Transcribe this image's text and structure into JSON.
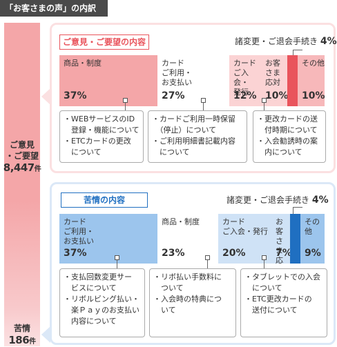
{
  "header": {
    "title": "「お客さまの声」の内訳"
  },
  "sidebar": {
    "opinion_label": "ご意見\n・ご要望",
    "opinion_count": "8,447",
    "complaint_label": "苦情",
    "complaint_count": "186",
    "count_unit": "件"
  },
  "opinion": {
    "title": "ご意見・ご要望の内容",
    "note_label": "諸変更・ご退会手続き",
    "note_pct": "4%",
    "segments": [
      {
        "label": "商品・制度",
        "pct": "37%",
        "value": 37,
        "color": "#f4a6a8"
      },
      {
        "label": "カード\nご利用・\nお支払い",
        "pct": "27%",
        "value": 27,
        "color": "#ffffff"
      },
      {
        "label": "カード\nご入会・\n発行",
        "pct": "12%",
        "value": 12,
        "color": "#fbd3d4"
      },
      {
        "label": "お客\nさま\n応対",
        "pct": "10%",
        "value": 10,
        "color": "#fbd3d4"
      },
      {
        "label": "",
        "pct": "",
        "value": 4,
        "color": "#e9545c"
      },
      {
        "label": "その他",
        "pct": "10%",
        "value": 10,
        "color": "#f7b8ba"
      }
    ],
    "bubbles": [
      [
        "・WEBサービスのID\n　登録・機能について",
        "・ETCカードの更改\n　について"
      ],
      [
        "・カードご利用一時保留\n　（停止）について",
        "・ご利用明細書記載内容\n　について"
      ],
      [
        "・更改カードの送\n　付時期について",
        "・入会勧誘時の案\n　内について"
      ]
    ]
  },
  "complaint": {
    "title": "苦情の内容",
    "note_label": "諸変更・ご退会手続き",
    "note_pct": "4%",
    "segments": [
      {
        "label": "カード\nご利用・\nお支払い",
        "pct": "37%",
        "value": 37,
        "color": "#9cc5ed"
      },
      {
        "label": "商品・制度",
        "pct": "23%",
        "value": 23,
        "color": "#ffffff"
      },
      {
        "label": "カード\nご入会・発行",
        "pct": "20%",
        "value": 20,
        "color": "#cfe2f6"
      },
      {
        "label": "お客\nさま\n応対",
        "pct": "7%",
        "value": 7,
        "color": "#cfe2f6"
      },
      {
        "label": "",
        "pct": "",
        "value": 4,
        "color": "#1f6fc1"
      },
      {
        "label": "その他",
        "pct": "9%",
        "value": 9,
        "color": "#9cc5ed"
      }
    ],
    "bubbles": [
      [
        "・支払回数変更サー\n　ビスについて",
        "・リボルビング払い・\n　楽Ｐａｙのお支払い\n　内容について"
      ],
      [
        "・リボ払い手数料に\n　ついて",
        "・入会時の特典につ\n　いて"
      ],
      [
        "・タブレットでの入会\n　について",
        "・ETC更改カードの\n　送付について"
      ]
    ]
  }
}
